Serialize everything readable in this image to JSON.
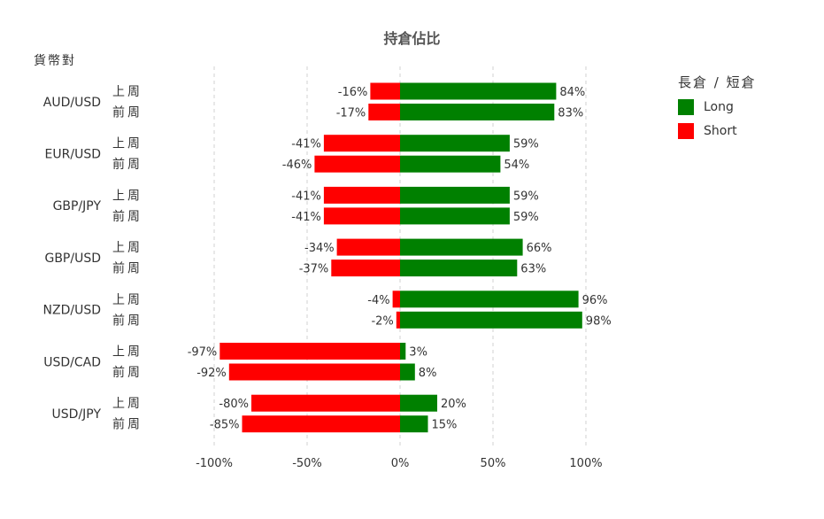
{
  "chart_data": {
    "type": "bar",
    "orientation": "horizontal",
    "stacked": "diverging",
    "title": "持倉佔比",
    "ylabel": "貨幣對",
    "legend": {
      "title": "長倉 / 短倉",
      "position": "top-right"
    },
    "xlim": [
      -100,
      100
    ],
    "xticks": [
      -100,
      -50,
      0,
      50,
      100
    ],
    "xtick_labels": [
      "-100%",
      "-50%",
      "0%",
      "50%",
      "100%"
    ],
    "grid": "vertical-dashed",
    "series": [
      {
        "name": "Long",
        "color": "#008000"
      },
      {
        "name": "Short",
        "color": "#ff0000"
      }
    ],
    "groups": [
      {
        "pair": "AUD/USD",
        "rows": [
          {
            "period": "上周",
            "short": -16,
            "long": 84
          },
          {
            "period": "前周",
            "short": -17,
            "long": 83
          }
        ]
      },
      {
        "pair": "EUR/USD",
        "rows": [
          {
            "period": "上周",
            "short": -41,
            "long": 59
          },
          {
            "period": "前周",
            "short": -46,
            "long": 54
          }
        ]
      },
      {
        "pair": "GBP/JPY",
        "rows": [
          {
            "period": "上周",
            "short": -41,
            "long": 59
          },
          {
            "period": "前周",
            "short": -41,
            "long": 59
          }
        ]
      },
      {
        "pair": "GBP/USD",
        "rows": [
          {
            "period": "上周",
            "short": -34,
            "long": 66
          },
          {
            "period": "前周",
            "short": -37,
            "long": 63
          }
        ]
      },
      {
        "pair": "NZD/USD",
        "rows": [
          {
            "period": "上周",
            "short": -4,
            "long": 96
          },
          {
            "period": "前周",
            "short": -2,
            "long": 98
          }
        ]
      },
      {
        "pair": "USD/CAD",
        "rows": [
          {
            "period": "上周",
            "short": -97,
            "long": 3
          },
          {
            "period": "前周",
            "short": -92,
            "long": 8
          }
        ]
      },
      {
        "pair": "USD/JPY",
        "rows": [
          {
            "period": "上周",
            "short": -80,
            "long": 20
          },
          {
            "period": "前周",
            "short": -85,
            "long": 15
          }
        ]
      }
    ]
  }
}
